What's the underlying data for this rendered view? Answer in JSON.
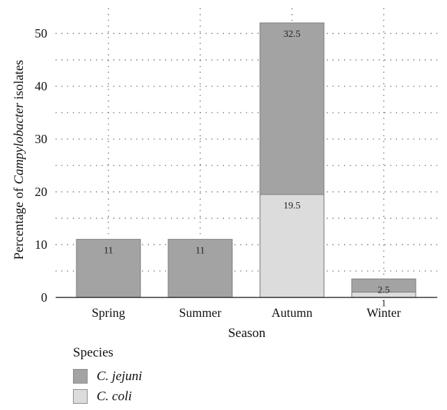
{
  "chart_data": {
    "type": "bar",
    "stacked": true,
    "categories": [
      "Spring",
      "Summer",
      "Autumn",
      "Winter"
    ],
    "series": [
      {
        "name": "C. coli",
        "values": [
          0,
          0,
          19.5,
          1
        ],
        "labels": [
          "",
          "",
          "19.5",
          "1"
        ],
        "color": "#dcdcdc"
      },
      {
        "name": "C. jejuni",
        "values": [
          11,
          11,
          32.5,
          2.5
        ],
        "labels": [
          "11",
          "11",
          "32.5",
          "2.5"
        ],
        "color": "#a3a3a3"
      }
    ],
    "xlabel": "Season",
    "ylabel_prefix": "Percentage of ",
    "ylabel_italic": "Campylobacter",
    "ylabel_suffix": " isolates",
    "ylim": [
      0,
      52
    ],
    "yticks": [
      0,
      10,
      20,
      30,
      40,
      50
    ],
    "grid": true,
    "legend_position": "bottom-left"
  },
  "legend": {
    "title": "Species",
    "items": [
      {
        "label": "C. jejuni",
        "color": "#a3a3a3"
      },
      {
        "label": "C. coli",
        "color": "#dcdcdc"
      }
    ]
  }
}
